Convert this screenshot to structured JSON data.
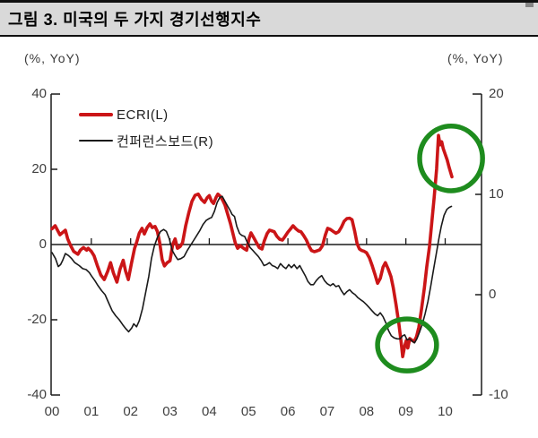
{
  "window": {
    "title": "그림 3. 미국의 두 가지 경기선행지수"
  },
  "axis_units": {
    "left": "(%, YoY)",
    "right": "(%, YoY)"
  },
  "legend": {
    "items": [
      {
        "label": "ECRI(L)"
      },
      {
        "label": "컨퍼런스보드(R)"
      }
    ]
  },
  "colors": {
    "accent_red": "#cb1517",
    "line_black": "#1a1a1a",
    "annotation_green": "#1e8c1e",
    "title_bg": "#d9d9d9"
  },
  "chart_data": {
    "type": "line",
    "title": "그림 3. 미국의 두 가지 경기선행지수",
    "left_axis": {
      "label": "(%, YoY)",
      "ticks": [
        40,
        20,
        0,
        -20,
        -40
      ],
      "range": [
        -40,
        40
      ]
    },
    "right_axis": {
      "label": "(%, YoY)",
      "ticks": [
        20,
        10,
        0,
        -10
      ],
      "range": [
        -10,
        20
      ]
    },
    "x_axis": {
      "tick_labels": [
        "00",
        "01",
        "02",
        "03",
        "04",
        "05",
        "06",
        "07",
        "08",
        "09",
        "10"
      ],
      "range_years": [
        2000,
        2010.95
      ]
    },
    "grid": false,
    "legend_position": "top-left-inside",
    "series": [
      {
        "name": "ECRI(L)",
        "axis": "left",
        "color": "#cb1517",
        "width": 3.6,
        "points": [
          [
            0.0,
            4.2
          ],
          [
            0.08,
            5.0
          ],
          [
            0.13,
            4.0
          ],
          [
            0.2,
            2.6
          ],
          [
            0.27,
            3.2
          ],
          [
            0.34,
            3.8
          ],
          [
            0.4,
            1.5
          ],
          [
            0.46,
            0
          ],
          [
            0.55,
            -1.8
          ],
          [
            0.66,
            -2.6
          ],
          [
            0.72,
            -1.5
          ],
          [
            0.8,
            -0.8
          ],
          [
            0.88,
            -1.5
          ],
          [
            0.92,
            -1.0
          ],
          [
            1.0,
            -1.8
          ],
          [
            1.07,
            -3.0
          ],
          [
            1.15,
            -5.5
          ],
          [
            1.24,
            -8.1
          ],
          [
            1.33,
            -9.3
          ],
          [
            1.42,
            -7.0
          ],
          [
            1.49,
            -4.8
          ],
          [
            1.56,
            -7.5
          ],
          [
            1.65,
            -10.0
          ],
          [
            1.73,
            -6.5
          ],
          [
            1.81,
            -4.2
          ],
          [
            1.87,
            -7.0
          ],
          [
            1.94,
            -9.3
          ],
          [
            2.02,
            -5.0
          ],
          [
            2.1,
            -1.0
          ],
          [
            2.15,
            0.5
          ],
          [
            2.22,
            3.0
          ],
          [
            2.29,
            4.3
          ],
          [
            2.35,
            2.8
          ],
          [
            2.42,
            4.5
          ],
          [
            2.49,
            5.5
          ],
          [
            2.55,
            4.5
          ],
          [
            2.62,
            4.8
          ],
          [
            2.68,
            3.5
          ],
          [
            2.74,
            0.5
          ],
          [
            2.8,
            -4.0
          ],
          [
            2.86,
            -5.7
          ],
          [
            2.93,
            -4.8
          ],
          [
            3.0,
            -4.3
          ],
          [
            3.07,
            0.0
          ],
          [
            3.13,
            1.5
          ],
          [
            3.19,
            -1.0
          ],
          [
            3.26,
            -0.5
          ],
          [
            3.32,
            0.5
          ],
          [
            3.4,
            5.0
          ],
          [
            3.48,
            8.5
          ],
          [
            3.56,
            11.5
          ],
          [
            3.64,
            13.1
          ],
          [
            3.72,
            13.4
          ],
          [
            3.8,
            12.0
          ],
          [
            3.88,
            11.2
          ],
          [
            3.95,
            12.5
          ],
          [
            4.0,
            13.0
          ],
          [
            4.06,
            11.5
          ],
          [
            4.11,
            10.9
          ],
          [
            4.17,
            12.5
          ],
          [
            4.22,
            13.4
          ],
          [
            4.28,
            12.8
          ],
          [
            4.34,
            11.8
          ],
          [
            4.4,
            10.5
          ],
          [
            4.47,
            8.0
          ],
          [
            4.54,
            5.5
          ],
          [
            4.6,
            3.0
          ],
          [
            4.66,
            0.5
          ],
          [
            4.72,
            -1.0
          ],
          [
            4.79,
            -0.3
          ],
          [
            4.85,
            -0.8
          ],
          [
            4.9,
            -1.2
          ],
          [
            4.95,
            -1.5
          ],
          [
            5.01,
            1.5
          ],
          [
            5.06,
            3.1
          ],
          [
            5.13,
            1.8
          ],
          [
            5.2,
            0.5
          ],
          [
            5.27,
            -0.8
          ],
          [
            5.34,
            -1.2
          ],
          [
            5.4,
            1.0
          ],
          [
            5.47,
            2.9
          ],
          [
            5.53,
            3.8
          ],
          [
            5.6,
            3.6
          ],
          [
            5.65,
            3.4
          ],
          [
            5.72,
            2.2
          ],
          [
            5.79,
            1.4
          ],
          [
            5.86,
            1.2
          ],
          [
            5.93,
            2.2
          ],
          [
            6.0,
            3.3
          ],
          [
            6.07,
            4.2
          ],
          [
            6.13,
            5.0
          ],
          [
            6.2,
            4.2
          ],
          [
            6.27,
            3.6
          ],
          [
            6.33,
            3.4
          ],
          [
            6.4,
            2.4
          ],
          [
            6.47,
            1.2
          ],
          [
            6.54,
            -0.5
          ],
          [
            6.6,
            -1.6
          ],
          [
            6.67,
            -1.9
          ],
          [
            6.74,
            -1.7
          ],
          [
            6.81,
            -1.4
          ],
          [
            6.88,
            -0.3
          ],
          [
            6.95,
            2.5
          ],
          [
            7.01,
            4.3
          ],
          [
            7.08,
            4.0
          ],
          [
            7.15,
            3.5
          ],
          [
            7.22,
            3.0
          ],
          [
            7.29,
            3.4
          ],
          [
            7.36,
            4.6
          ],
          [
            7.43,
            6.2
          ],
          [
            7.5,
            6.9
          ],
          [
            7.57,
            7.0
          ],
          [
            7.63,
            6.6
          ],
          [
            7.7,
            3.5
          ],
          [
            7.76,
            0.2
          ],
          [
            7.82,
            -1.2
          ],
          [
            7.88,
            -1.6
          ],
          [
            7.94,
            -1.8
          ],
          [
            8.0,
            -2.2
          ],
          [
            8.07,
            -3.5
          ],
          [
            8.14,
            -5.5
          ],
          [
            8.21,
            -7.8
          ],
          [
            8.28,
            -10.3
          ],
          [
            8.35,
            -9.0
          ],
          [
            8.42,
            -6.0
          ],
          [
            8.48,
            -4.8
          ],
          [
            8.55,
            -6.5
          ],
          [
            8.62,
            -8.5
          ],
          [
            8.68,
            -11.5
          ],
          [
            8.75,
            -16.0
          ],
          [
            8.82,
            -21.0
          ],
          [
            8.88,
            -26.0
          ],
          [
            8.92,
            -29.8
          ],
          [
            8.97,
            -27.0
          ],
          [
            9.01,
            -25.5
          ],
          [
            9.05,
            -27.5
          ],
          [
            9.1,
            -25.0
          ],
          [
            9.16,
            -25.5
          ],
          [
            9.21,
            -25.8
          ],
          [
            9.27,
            -24.5
          ],
          [
            9.33,
            -22.0
          ],
          [
            9.4,
            -17.0
          ],
          [
            9.47,
            -11.5
          ],
          [
            9.53,
            -6.0
          ],
          [
            9.6,
            -0.5
          ],
          [
            9.66,
            6.0
          ],
          [
            9.72,
            12.5
          ],
          [
            9.78,
            20.0
          ],
          [
            9.83,
            29.0
          ],
          [
            9.87,
            26.5
          ],
          [
            9.91,
            27.3
          ],
          [
            9.95,
            25.5
          ],
          [
            10.0,
            24.0
          ],
          [
            10.05,
            22.5
          ],
          [
            10.1,
            20.5
          ],
          [
            10.17,
            18.0
          ]
        ]
      },
      {
        "name": "컨퍼런스보드(R)",
        "axis": "right",
        "color": "#1a1a1a",
        "width": 1.6,
        "points": [
          [
            0.0,
            4.2
          ],
          [
            0.09,
            3.6
          ],
          [
            0.16,
            2.8
          ],
          [
            0.22,
            3.0
          ],
          [
            0.27,
            3.4
          ],
          [
            0.34,
            4.1
          ],
          [
            0.42,
            3.9
          ],
          [
            0.5,
            3.6
          ],
          [
            0.58,
            3.2
          ],
          [
            0.69,
            2.9
          ],
          [
            0.78,
            2.6
          ],
          [
            0.87,
            2.5
          ],
          [
            0.95,
            2.2
          ],
          [
            1.0,
            1.9
          ],
          [
            1.09,
            1.4
          ],
          [
            1.17,
            0.9
          ],
          [
            1.26,
            0.4
          ],
          [
            1.35,
            0.0
          ],
          [
            1.44,
            -0.8
          ],
          [
            1.53,
            -1.6
          ],
          [
            1.62,
            -2.1
          ],
          [
            1.71,
            -2.5
          ],
          [
            1.8,
            -3.0
          ],
          [
            1.88,
            -3.4
          ],
          [
            1.95,
            -3.7
          ],
          [
            2.03,
            -3.3
          ],
          [
            2.08,
            -2.9
          ],
          [
            2.15,
            -3.2
          ],
          [
            2.22,
            -2.6
          ],
          [
            2.3,
            -1.4
          ],
          [
            2.38,
            0.2
          ],
          [
            2.46,
            1.8
          ],
          [
            2.53,
            3.6
          ],
          [
            2.6,
            4.8
          ],
          [
            2.68,
            5.7
          ],
          [
            2.76,
            6.3
          ],
          [
            2.84,
            6.5
          ],
          [
            2.91,
            6.3
          ],
          [
            2.98,
            5.6
          ],
          [
            3.06,
            4.4
          ],
          [
            3.13,
            3.9
          ],
          [
            3.2,
            3.5
          ],
          [
            3.28,
            3.6
          ],
          [
            3.36,
            3.8
          ],
          [
            3.44,
            4.4
          ],
          [
            3.52,
            4.9
          ],
          [
            3.6,
            5.4
          ],
          [
            3.68,
            5.9
          ],
          [
            3.76,
            6.4
          ],
          [
            3.84,
            7.0
          ],
          [
            3.92,
            7.4
          ],
          [
            4.0,
            7.6
          ],
          [
            4.06,
            7.7
          ],
          [
            4.13,
            8.3
          ],
          [
            4.2,
            9.2
          ],
          [
            4.27,
            9.7
          ],
          [
            4.33,
            9.8
          ],
          [
            4.4,
            9.3
          ],
          [
            4.47,
            8.8
          ],
          [
            4.53,
            8.4
          ],
          [
            4.58,
            8.0
          ],
          [
            4.64,
            7.8
          ],
          [
            4.7,
            6.8
          ],
          [
            4.77,
            6.1
          ],
          [
            4.83,
            5.9
          ],
          [
            4.9,
            5.8
          ],
          [
            4.97,
            5.2
          ],
          [
            5.04,
            4.7
          ],
          [
            5.11,
            4.4
          ],
          [
            5.18,
            4.1
          ],
          [
            5.25,
            3.8
          ],
          [
            5.32,
            3.4
          ],
          [
            5.39,
            2.9
          ],
          [
            5.46,
            3.0
          ],
          [
            5.53,
            3.2
          ],
          [
            5.6,
            2.9
          ],
          [
            5.67,
            2.8
          ],
          [
            5.74,
            2.6
          ],
          [
            5.81,
            3.1
          ],
          [
            5.88,
            2.8
          ],
          [
            5.95,
            2.6
          ],
          [
            6.02,
            3.0
          ],
          [
            6.09,
            2.7
          ],
          [
            6.16,
            3.0
          ],
          [
            6.23,
            2.6
          ],
          [
            6.3,
            2.9
          ],
          [
            6.37,
            2.4
          ],
          [
            6.44,
            1.9
          ],
          [
            6.51,
            1.3
          ],
          [
            6.58,
            1.0
          ],
          [
            6.65,
            1.0
          ],
          [
            6.72,
            1.4
          ],
          [
            6.79,
            1.7
          ],
          [
            6.86,
            1.9
          ],
          [
            6.93,
            1.4
          ],
          [
            7.0,
            1.1
          ],
          [
            7.08,
            0.9
          ],
          [
            7.15,
            1.1
          ],
          [
            7.22,
            0.8
          ],
          [
            7.29,
            0.9
          ],
          [
            7.36,
            0.4
          ],
          [
            7.43,
            0.0
          ],
          [
            7.5,
            0.3
          ],
          [
            7.57,
            0.5
          ],
          [
            7.64,
            0.2
          ],
          [
            7.71,
            0.0
          ],
          [
            7.78,
            -0.3
          ],
          [
            7.85,
            -0.5
          ],
          [
            7.92,
            -0.7
          ],
          [
            8.0,
            -1.0
          ],
          [
            8.07,
            -1.3
          ],
          [
            8.14,
            -1.6
          ],
          [
            8.21,
            -1.9
          ],
          [
            8.28,
            -2.1
          ],
          [
            8.35,
            -1.8
          ],
          [
            8.42,
            -2.2
          ],
          [
            8.49,
            -2.8
          ],
          [
            8.56,
            -3.6
          ],
          [
            8.63,
            -4.1
          ],
          [
            8.7,
            -4.3
          ],
          [
            8.78,
            -4.4
          ],
          [
            8.85,
            -4.4
          ],
          [
            8.92,
            -4.1
          ],
          [
            8.97,
            -4.0
          ],
          [
            9.03,
            -4.5
          ],
          [
            9.09,
            -4.4
          ],
          [
            9.15,
            -4.6
          ],
          [
            9.22,
            -4.8
          ],
          [
            9.28,
            -4.4
          ],
          [
            9.35,
            -3.7
          ],
          [
            9.42,
            -2.9
          ],
          [
            9.49,
            -1.9
          ],
          [
            9.56,
            -0.7
          ],
          [
            9.63,
            0.8
          ],
          [
            9.7,
            2.4
          ],
          [
            9.77,
            4.0
          ],
          [
            9.84,
            5.6
          ],
          [
            9.9,
            6.8
          ],
          [
            9.97,
            7.9
          ],
          [
            10.04,
            8.5
          ],
          [
            10.1,
            8.7
          ],
          [
            10.16,
            8.8
          ]
        ]
      }
    ],
    "annotations": [
      {
        "type": "circle",
        "color": "#1e8c1e",
        "x_year": 9.03,
        "y_left_value": -26.7,
        "rx_years": 0.75,
        "ry_left_units": 6.9
      },
      {
        "type": "circle",
        "color": "#1e8c1e",
        "x_year": 10.15,
        "y_left_value": 22.9,
        "rx_years": 0.8,
        "ry_left_units": 8.6
      }
    ]
  }
}
